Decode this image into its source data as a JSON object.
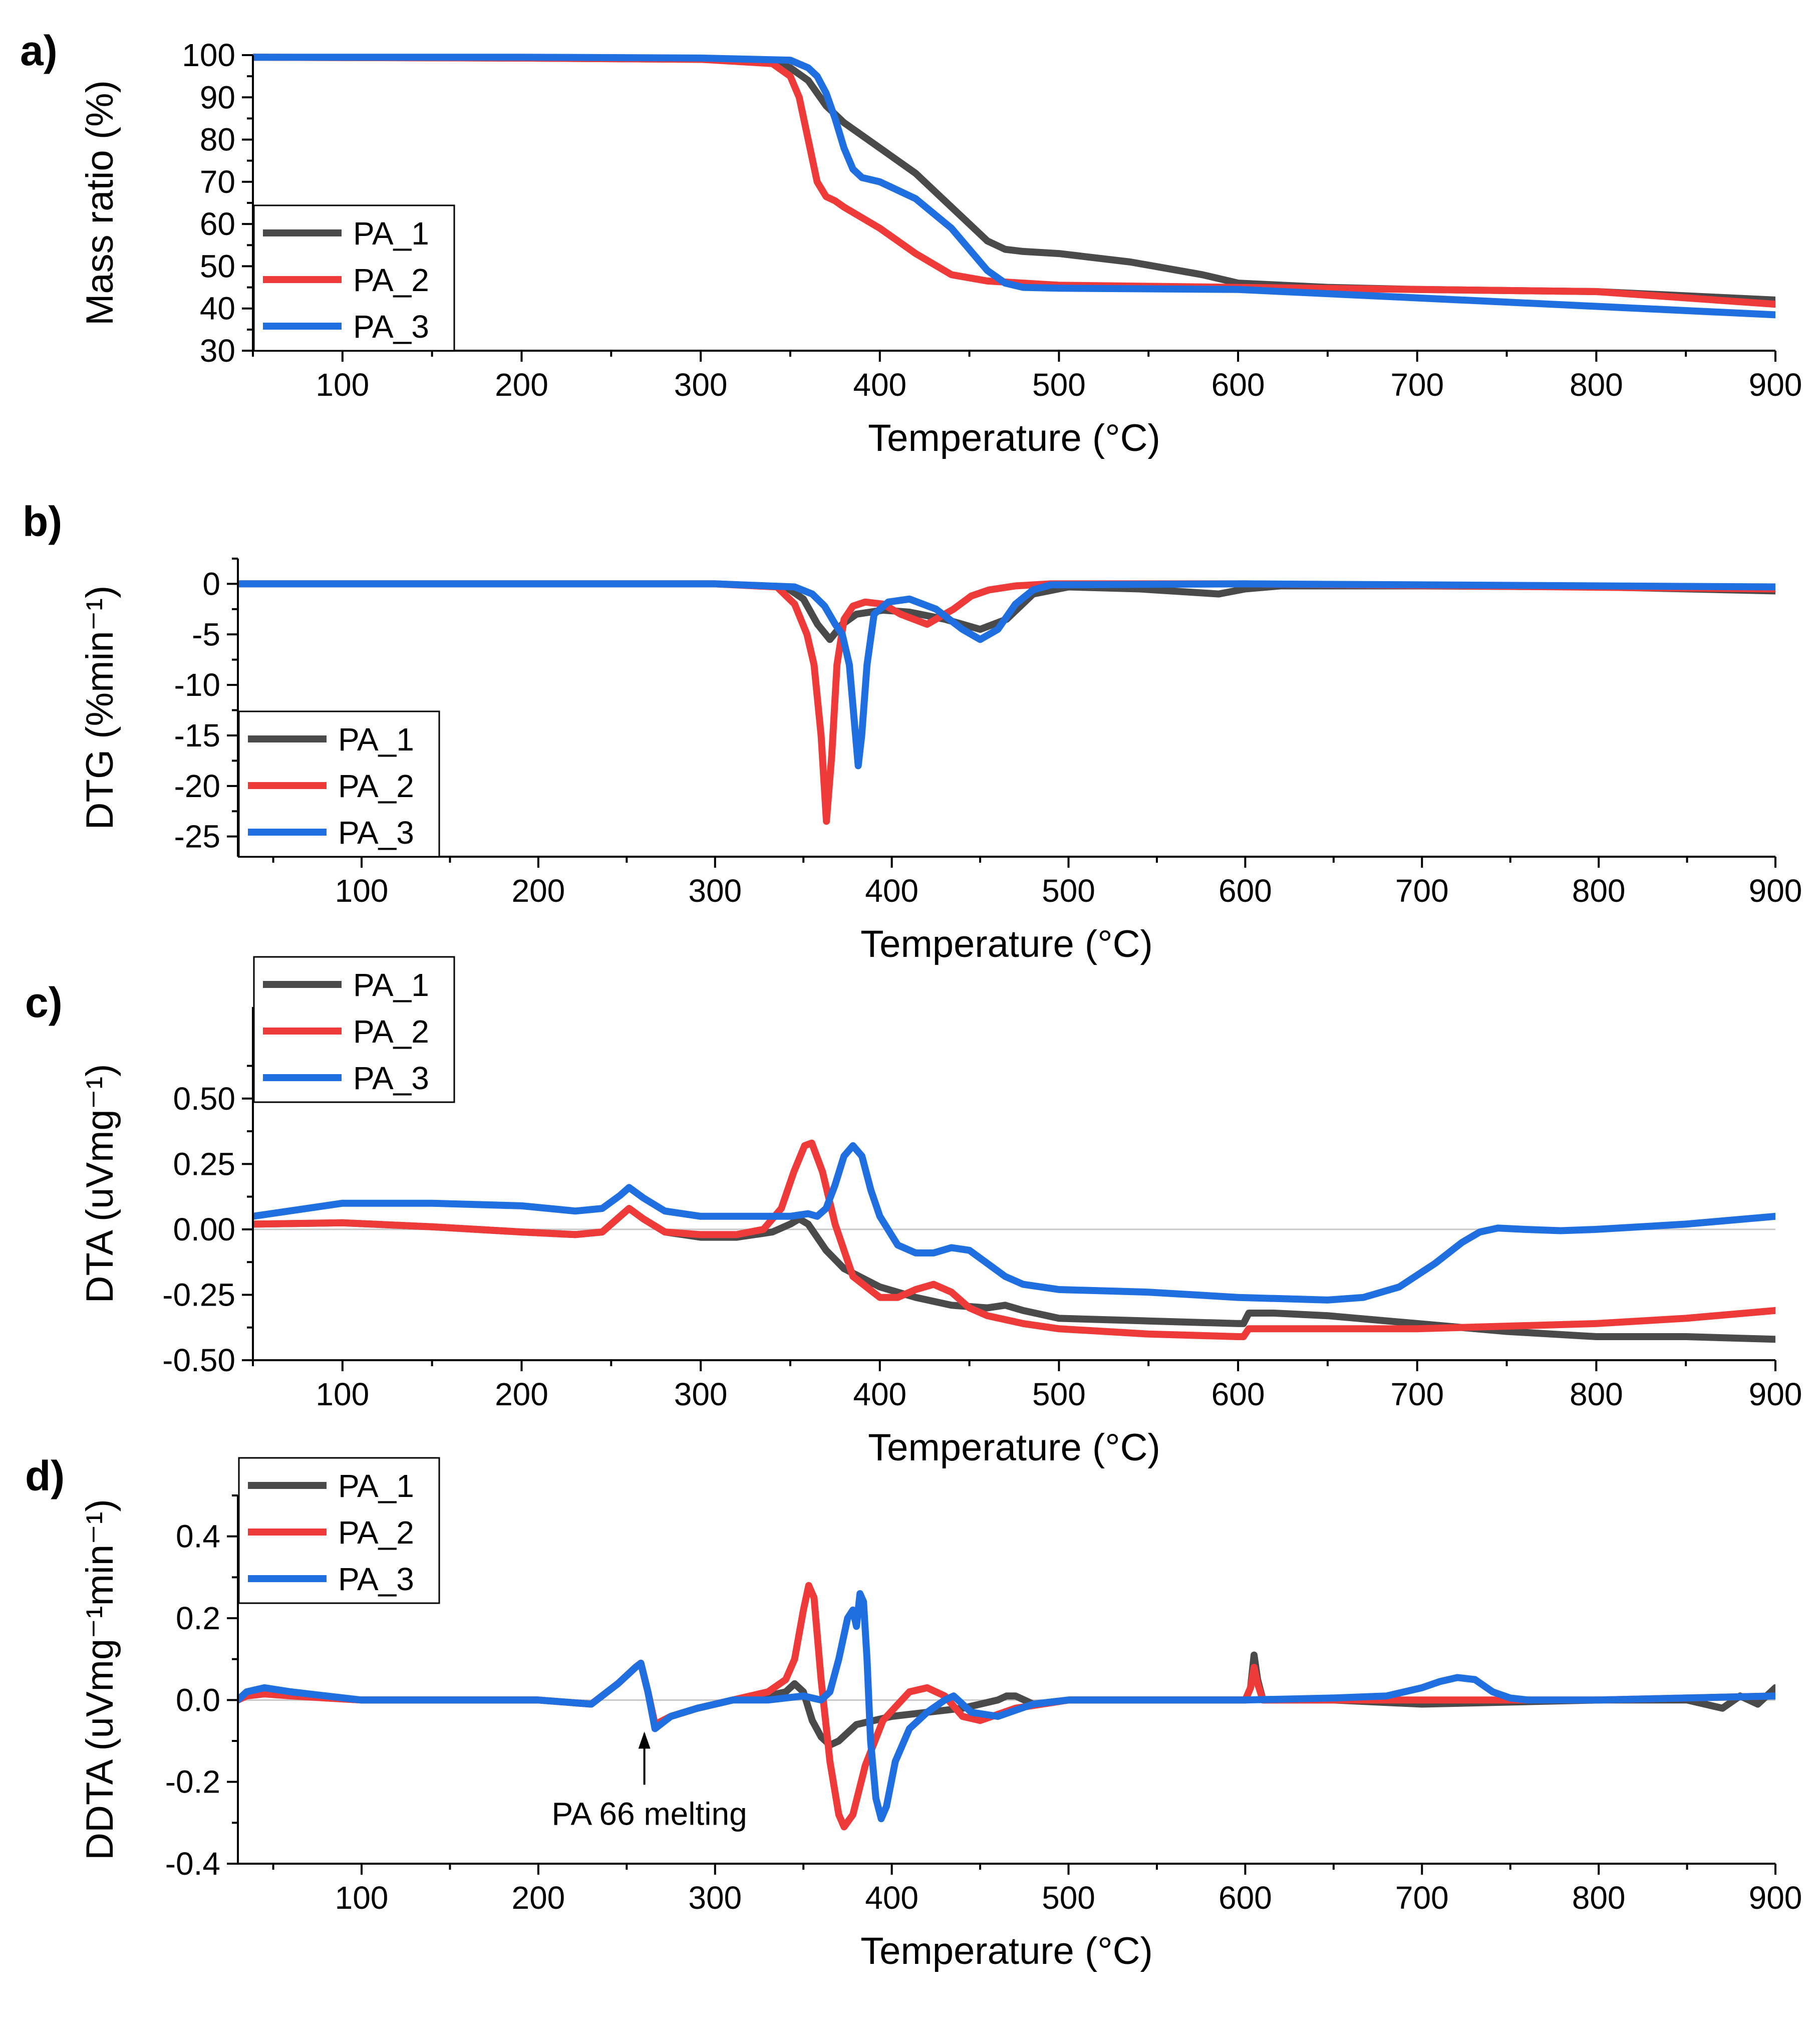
{
  "figure": {
    "background": "#ffffff",
    "series_colors": {
      "PA_1": "#4a4a4a",
      "PA_2": "#ef3a3a",
      "PA_3": "#1f6fe0"
    }
  },
  "chart_data": [
    {
      "panel": "a)",
      "type": "line",
      "xlabel": "Temperature (°C)",
      "ylabel": "Mass ratio (%)",
      "xlim": [
        50,
        900
      ],
      "ylim": [
        30,
        100
      ],
      "xticks": [
        100,
        200,
        300,
        400,
        500,
        600,
        700,
        800,
        900
      ],
      "yticks": [
        30,
        40,
        50,
        60,
        70,
        80,
        90,
        100
      ],
      "ytick_labels": [
        "30",
        "40",
        "50",
        "60",
        "70",
        "80",
        "90",
        "100"
      ],
      "zero_line": false,
      "legend": {
        "position": "bottom-left",
        "entries": [
          "PA_1",
          "PA_2",
          "PA_3"
        ]
      },
      "series": [
        {
          "name": "PA_1",
          "color": "#4a4a4a",
          "x": [
            50,
            200,
            300,
            340,
            350,
            360,
            370,
            380,
            390,
            400,
            420,
            440,
            460,
            470,
            480,
            500,
            540,
            580,
            600,
            650,
            700,
            800,
            900
          ],
          "y": [
            99.5,
            99.3,
            99.0,
            98.5,
            97,
            94,
            88,
            84,
            81,
            78,
            72,
            64,
            56,
            54,
            53.5,
            53,
            51,
            48,
            46,
            45,
            44.5,
            44,
            42
          ]
        },
        {
          "name": "PA_2",
          "color": "#ef3a3a",
          "x": [
            50,
            200,
            300,
            340,
            350,
            355,
            360,
            365,
            370,
            375,
            380,
            400,
            420,
            440,
            460,
            480,
            500,
            600,
            700,
            800,
            900
          ],
          "y": [
            99.5,
            99.3,
            99.0,
            98,
            95,
            90,
            80,
            70,
            66.5,
            65.5,
            64,
            59,
            53,
            48,
            46.5,
            46,
            45.5,
            45,
            44.5,
            44,
            41
          ]
        },
        {
          "name": "PA_3",
          "color": "#1f6fe0",
          "x": [
            50,
            200,
            300,
            350,
            360,
            365,
            370,
            375,
            380,
            385,
            390,
            400,
            420,
            440,
            460,
            470,
            480,
            500,
            600,
            700,
            800,
            900
          ],
          "y": [
            99.5,
            99.5,
            99.3,
            98.8,
            97,
            95,
            91,
            85,
            78,
            73,
            71,
            70,
            66,
            59,
            49,
            46,
            45,
            44.8,
            44.5,
            42.5,
            40.5,
            38.5
          ]
        }
      ]
    },
    {
      "panel": "b)",
      "type": "line",
      "xlabel": "Temperature (°C)",
      "ylabel": "DTG (%min⁻¹)",
      "xlim": [
        30,
        900
      ],
      "ylim": [
        -27,
        2.5
      ],
      "xticks": [
        100,
        200,
        300,
        400,
        500,
        600,
        700,
        800,
        900
      ],
      "yticks": [
        0,
        -5,
        -10,
        -15,
        -20,
        -25
      ],
      "ytick_labels": [
        "0",
        "-5",
        "-10",
        "-15",
        "-20",
        "-25"
      ],
      "zero_line": false,
      "legend": {
        "position": "bottom-left",
        "entries": [
          "PA_1",
          "PA_2",
          "PA_3"
        ]
      },
      "series": [
        {
          "name": "PA_1",
          "color": "#4a4a4a",
          "x": [
            30,
            300,
            340,
            350,
            358,
            365,
            372,
            380,
            395,
            410,
            430,
            450,
            465,
            480,
            500,
            540,
            585,
            600,
            620,
            700,
            800,
            900
          ],
          "y": [
            0,
            0,
            -0.3,
            -1.5,
            -4,
            -5.5,
            -4,
            -3,
            -2.6,
            -2.8,
            -3.5,
            -4.5,
            -3.5,
            -1.0,
            -0.3,
            -0.5,
            -1.0,
            -0.5,
            -0.2,
            -0.2,
            -0.3,
            -0.7
          ]
        },
        {
          "name": "PA_2",
          "color": "#ef3a3a",
          "x": [
            30,
            300,
            335,
            345,
            352,
            356,
            360,
            363,
            366,
            369,
            373,
            378,
            385,
            395,
            405,
            420,
            435,
            445,
            455,
            470,
            490,
            600,
            900
          ],
          "y": [
            0,
            0,
            -0.3,
            -2,
            -5,
            -8,
            -15,
            -23.5,
            -17,
            -8,
            -3.5,
            -2.2,
            -1.8,
            -2.0,
            -3.0,
            -4.0,
            -2.5,
            -1.2,
            -0.6,
            -0.2,
            0,
            0,
            -0.5
          ]
        },
        {
          "name": "PA_3",
          "color": "#1f6fe0",
          "x": [
            30,
            300,
            345,
            355,
            362,
            368,
            372,
            376,
            379,
            381,
            383,
            386,
            390,
            398,
            410,
            425,
            440,
            450,
            460,
            470,
            480,
            490,
            600,
            900
          ],
          "y": [
            0,
            0,
            -0.3,
            -1,
            -2.2,
            -4,
            -5,
            -8,
            -14,
            -18,
            -15,
            -8,
            -3,
            -1.8,
            -1.5,
            -2.5,
            -4.5,
            -5.5,
            -4.5,
            -2.0,
            -0.6,
            -0.1,
            0,
            -0.3
          ]
        }
      ]
    },
    {
      "panel": "c)",
      "type": "line",
      "xlabel": "Temperature (°C)",
      "ylabel": "DTA (uVmg⁻¹)",
      "xlim": [
        50,
        900
      ],
      "ylim": [
        -0.5,
        0.85
      ],
      "xticks": [
        100,
        200,
        300,
        400,
        500,
        600,
        700,
        800,
        900
      ],
      "yticks": [
        -0.5,
        -0.25,
        0,
        0.25,
        0.5
      ],
      "ytick_labels": [
        "-0.50",
        "-0.25",
        "0.00",
        "0.25",
        "0.50"
      ],
      "zero_line": true,
      "legend": {
        "position": "top-left",
        "entries": [
          "PA_1",
          "PA_2",
          "PA_3"
        ]
      },
      "series": [
        {
          "name": "PA_1",
          "color": "#4a4a4a",
          "x": [
            50,
            100,
            150,
            200,
            230,
            245,
            255,
            260,
            268,
            280,
            300,
            320,
            340,
            350,
            355,
            360,
            370,
            380,
            400,
            420,
            440,
            460,
            470,
            480,
            500,
            550,
            600,
            603,
            606,
            620,
            650,
            700,
            750,
            800,
            850,
            900
          ],
          "y": [
            0.02,
            0.025,
            0.01,
            -0.01,
            -0.02,
            -0.01,
            0.05,
            0.08,
            0.04,
            -0.01,
            -0.03,
            -0.03,
            -0.01,
            0.02,
            0.04,
            0.02,
            -0.08,
            -0.15,
            -0.22,
            -0.26,
            -0.29,
            -0.3,
            -0.29,
            -0.31,
            -0.34,
            -0.35,
            -0.36,
            -0.36,
            -0.32,
            -0.32,
            -0.33,
            -0.36,
            -0.39,
            -0.41,
            -0.41,
            -0.42
          ]
        },
        {
          "name": "PA_2",
          "color": "#ef3a3a",
          "x": [
            50,
            100,
            150,
            200,
            230,
            245,
            255,
            260,
            268,
            280,
            300,
            320,
            335,
            345,
            352,
            358,
            362,
            368,
            375,
            385,
            400,
            410,
            420,
            430,
            440,
            450,
            460,
            480,
            500,
            550,
            600,
            603,
            606,
            620,
            700,
            800,
            850,
            900
          ],
          "y": [
            0.02,
            0.025,
            0.01,
            -0.01,
            -0.02,
            -0.01,
            0.05,
            0.08,
            0.04,
            -0.01,
            -0.02,
            -0.02,
            0.0,
            0.08,
            0.22,
            0.32,
            0.33,
            0.22,
            0.02,
            -0.18,
            -0.26,
            -0.26,
            -0.23,
            -0.21,
            -0.24,
            -0.3,
            -0.33,
            -0.36,
            -0.38,
            -0.4,
            -0.41,
            -0.41,
            -0.38,
            -0.38,
            -0.38,
            -0.36,
            -0.34,
            -0.31
          ]
        },
        {
          "name": "PA_3",
          "color": "#1f6fe0",
          "x": [
            50,
            100,
            150,
            200,
            230,
            245,
            255,
            260,
            268,
            280,
            300,
            330,
            350,
            360,
            365,
            370,
            375,
            380,
            385,
            390,
            395,
            400,
            410,
            420,
            430,
            440,
            450,
            460,
            470,
            480,
            500,
            550,
            600,
            650,
            670,
            690,
            710,
            725,
            735,
            745,
            760,
            780,
            800,
            850,
            900
          ],
          "y": [
            0.05,
            0.1,
            0.1,
            0.09,
            0.07,
            0.08,
            0.13,
            0.16,
            0.12,
            0.07,
            0.05,
            0.05,
            0.05,
            0.06,
            0.05,
            0.08,
            0.17,
            0.28,
            0.32,
            0.28,
            0.15,
            0.05,
            -0.06,
            -0.09,
            -0.09,
            -0.07,
            -0.08,
            -0.13,
            -0.18,
            -0.21,
            -0.23,
            -0.24,
            -0.26,
            -0.27,
            -0.26,
            -0.22,
            -0.13,
            -0.05,
            -0.01,
            0.005,
            0.0,
            -0.005,
            0.0,
            0.02,
            0.05
          ]
        }
      ]
    },
    {
      "panel": "d)",
      "type": "line",
      "xlabel": "Temperature (°C)",
      "ylabel": "DDTA (uVmg⁻¹min⁻¹)",
      "xlim": [
        30,
        900
      ],
      "ylim": [
        -0.4,
        0.5
      ],
      "xticks": [
        100,
        200,
        300,
        400,
        500,
        600,
        700,
        800,
        900
      ],
      "yticks": [
        -0.4,
        -0.2,
        0,
        0.2,
        0.4
      ],
      "ytick_labels": [
        "-0.4",
        "-0.2",
        "0.0",
        "0.2",
        "0.4"
      ],
      "zero_line": true,
      "annotation": {
        "text": "PA 66 melting",
        "x": 260,
        "y": -0.06
      },
      "legend": {
        "position": "top-left",
        "entries": [
          "PA_1",
          "PA_2",
          "PA_3"
        ]
      },
      "series": [
        {
          "name": "PA_1",
          "color": "#4a4a4a",
          "x": [
            30,
            35,
            45,
            60,
            80,
            100,
            200,
            230,
            245,
            255,
            258,
            262,
            266,
            275,
            290,
            310,
            330,
            340,
            345,
            350,
            355,
            360,
            365,
            370,
            380,
            400,
            420,
            440,
            460,
            465,
            470,
            480,
            500,
            600,
            603,
            605,
            607,
            610,
            650,
            700,
            800,
            850,
            870,
            880,
            890,
            900
          ],
          "y": [
            0,
            0.02,
            0.025,
            0.015,
            0.005,
            0,
            0,
            -0.01,
            0.04,
            0.08,
            0.09,
            0.02,
            -0.06,
            -0.04,
            -0.02,
            0.0,
            0.01,
            0.02,
            0.04,
            0.02,
            -0.05,
            -0.09,
            -0.11,
            -0.1,
            -0.06,
            -0.04,
            -0.03,
            -0.02,
            0.0,
            0.01,
            0.01,
            -0.01,
            0,
            0,
            0.03,
            0.11,
            0.05,
            0,
            0,
            -0.01,
            0,
            0,
            -0.02,
            0.01,
            -0.01,
            0.03
          ]
        },
        {
          "name": "PA_2",
          "color": "#ef3a3a",
          "x": [
            30,
            35,
            45,
            60,
            80,
            100,
            200,
            230,
            245,
            255,
            258,
            262,
            266,
            275,
            290,
            310,
            330,
            340,
            345,
            350,
            353,
            356,
            360,
            365,
            370,
            373,
            378,
            385,
            395,
            410,
            420,
            430,
            440,
            450,
            470,
            500,
            600,
            603,
            605,
            607,
            610,
            700,
            800,
            900
          ],
          "y": [
            0,
            0.01,
            0.015,
            0.01,
            0.005,
            0,
            0,
            -0.01,
            0.04,
            0.08,
            0.09,
            0.02,
            -0.06,
            -0.04,
            -0.02,
            0.0,
            0.02,
            0.05,
            0.1,
            0.22,
            0.28,
            0.25,
            0.05,
            -0.15,
            -0.28,
            -0.31,
            -0.28,
            -0.16,
            -0.05,
            0.02,
            0.03,
            0.01,
            -0.04,
            -0.05,
            -0.02,
            0,
            0,
            0.03,
            0.08,
            0.04,
            0,
            0,
            0,
            0.01
          ]
        },
        {
          "name": "PA_3",
          "color": "#1f6fe0",
          "x": [
            30,
            35,
            45,
            60,
            80,
            100,
            200,
            230,
            245,
            255,
            258,
            262,
            266,
            275,
            290,
            310,
            330,
            350,
            360,
            365,
            370,
            375,
            378,
            380,
            382,
            384,
            386,
            388,
            391,
            394,
            397,
            402,
            410,
            420,
            430,
            435,
            445,
            460,
            480,
            500,
            600,
            650,
            680,
            700,
            710,
            720,
            730,
            740,
            750,
            760,
            800,
            900
          ],
          "y": [
            0,
            0.02,
            0.03,
            0.02,
            0.01,
            0,
            0,
            -0.01,
            0.04,
            0.08,
            0.09,
            0.02,
            -0.07,
            -0.04,
            -0.02,
            0.0,
            0.0,
            0.01,
            0.0,
            0.02,
            0.1,
            0.2,
            0.22,
            0.18,
            0.26,
            0.24,
            0.1,
            -0.1,
            -0.24,
            -0.29,
            -0.26,
            -0.15,
            -0.07,
            -0.03,
            0.0,
            0.01,
            -0.03,
            -0.04,
            -0.01,
            0,
            0,
            0.005,
            0.01,
            0.03,
            0.045,
            0.055,
            0.05,
            0.02,
            0.005,
            0,
            0,
            0.01
          ]
        }
      ]
    }
  ]
}
